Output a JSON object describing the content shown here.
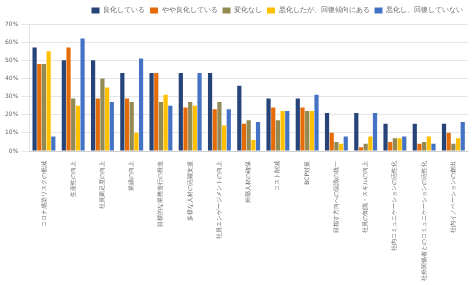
{
  "chart_data": {
    "type": "bar",
    "categories": [
      "コロナ感染リスクの低減",
      "生産性の向上",
      "社員満足度の向上",
      "業績の向上",
      "目標的な業務進行の推進",
      "多様な人材の活躍支援",
      "社員エンゲージメントの向上",
      "外部人材の確保",
      "コスト削減",
      "BCP対策",
      "目指す方向への認識の統一",
      "社員の知識・スキルの向上",
      "社内コミュニケーションの活性化",
      "社外関係者とのコミュニケーションの活性化",
      "社内イノベーションの創出"
    ],
    "series": [
      {
        "name": "良化している",
        "color": "#264478",
        "values": [
          57,
          50,
          50,
          43,
          43,
          43,
          43,
          36,
          29,
          29,
          21,
          21,
          15,
          15,
          15
        ]
      },
      {
        "name": "やや良化している",
        "color": "#e36c09",
        "values": [
          48,
          57,
          29,
          29,
          43,
          24,
          23,
          15,
          24,
          24,
          10,
          2,
          5,
          4,
          10
        ]
      },
      {
        "name": "変化なし",
        "color": "#938953",
        "values": [
          48,
          29,
          40,
          27,
          27,
          27,
          27,
          17,
          17,
          22,
          5,
          4,
          7,
          5,
          4
        ]
      },
      {
        "name": "悪化したが、回復傾向にある",
        "color": "#ffc000",
        "values": [
          55,
          25,
          35,
          10,
          31,
          25,
          14,
          6,
          22,
          22,
          4,
          8,
          7,
          8,
          7
        ]
      },
      {
        "name": "悪化し、回復していない",
        "color": "#4472c4",
        "values": [
          8,
          62,
          27,
          51,
          25,
          43,
          23,
          16,
          22,
          31,
          8,
          21,
          8,
          4,
          16
        ]
      }
    ],
    "ylim": [
      0,
      70
    ],
    "yticks": [
      {
        "value": 0,
        "label": "0%"
      },
      {
        "value": 10,
        "label": "10%"
      },
      {
        "value": 20,
        "label": "20%"
      },
      {
        "value": 30,
        "label": "30%"
      },
      {
        "value": 40,
        "label": "40%"
      },
      {
        "value": 50,
        "label": "50%"
      },
      {
        "value": 60,
        "label": "60%"
      },
      {
        "value": 70,
        "label": "70%"
      }
    ],
    "grid": true,
    "legend": "upper right"
  }
}
